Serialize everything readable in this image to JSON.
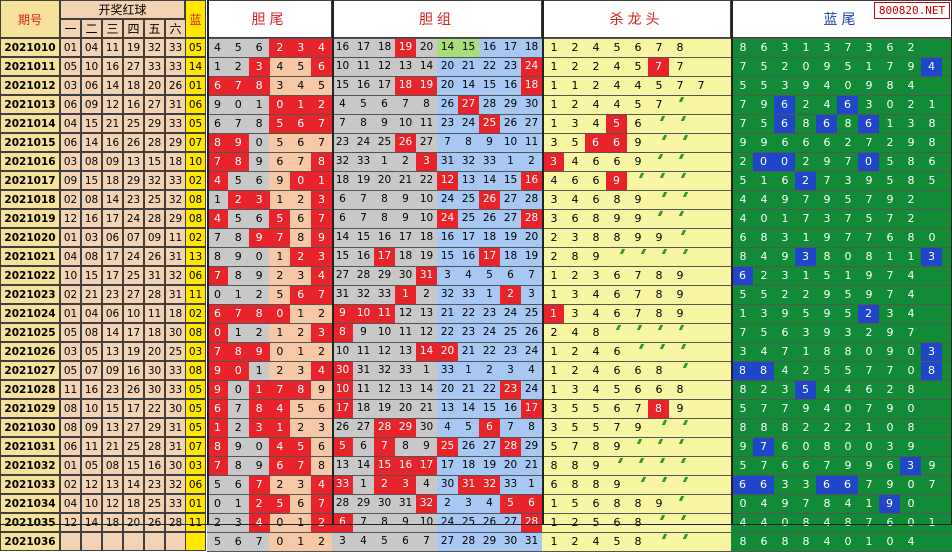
{
  "headers": {
    "period": "期号",
    "red_group": "开奖红球",
    "red_cols": [
      "一",
      "二",
      "三",
      "四",
      "五",
      "六"
    ],
    "blue": "蓝",
    "sec_dan": "胆尾",
    "sec_zu": "胆组",
    "sec_kill": "杀龙头",
    "sec_blue": "蓝尾"
  },
  "watermark": "800820.NET",
  "colors": {
    "period_bg": "#f6e29a",
    "ball_bg": "#f3d3b4",
    "blue_bg": "#ffe700",
    "red": "#e8242a",
    "gray": "#c8c8c8",
    "peach": "#f6c8a6",
    "lightblue": "#a6c8f2",
    "lightgreen": "#a7de7c",
    "yellow": "#f8f6a2",
    "green": "#118b36",
    "blue": "#1f45c8",
    "header_red": "#d81e1e",
    "header_blue": "#1b3fb5",
    "grid": "#3f3f3f"
  },
  "rows": [
    {
      "period": "2021010",
      "reds": [
        "01",
        "04",
        "11",
        "19",
        "32",
        "33"
      ],
      "blue": "05",
      "dan": [
        "4",
        "5",
        "6",
        "2",
        "3",
        "4"
      ],
      "zu": [
        "16",
        "17",
        "18",
        "19",
        "20",
        "14",
        "15",
        "16",
        "17",
        "18"
      ],
      "kill": [
        "1",
        "2",
        "4",
        "5",
        "6",
        "7",
        "8"
      ],
      "bluetail": [
        "8",
        "6",
        "3",
        "1",
        "3",
        "7",
        "3",
        "6",
        "2"
      ]
    },
    {
      "period": "2021011",
      "reds": [
        "05",
        "10",
        "16",
        "27",
        "33",
        "33"
      ],
      "blue": "14",
      "dan": [
        "1",
        "2",
        "3",
        "4",
        "5",
        "6"
      ],
      "zu": [
        "10",
        "11",
        "12",
        "13",
        "14",
        "20",
        "21",
        "22",
        "23",
        "24"
      ],
      "kill": [
        "1",
        "2",
        "2",
        "4",
        "5",
        "7",
        "7"
      ],
      "bluetail": [
        "7",
        "5",
        "2",
        "0",
        "9",
        "5",
        "1",
        "7",
        "9",
        "4"
      ]
    },
    {
      "period": "2021012",
      "reds": [
        "03",
        "06",
        "14",
        "18",
        "20",
        "26"
      ],
      "blue": "01",
      "dan": [
        "6",
        "7",
        "8",
        "3",
        "4",
        "5"
      ],
      "zu": [
        "15",
        "16",
        "17",
        "18",
        "19",
        "20",
        "14",
        "15",
        "16",
        "18"
      ],
      "kill": [
        "1",
        "1",
        "2",
        "4",
        "4",
        "5",
        "7",
        "7"
      ],
      "bluetail": [
        "5",
        "5",
        "3",
        "9",
        "4",
        "0",
        "9",
        "8",
        "4"
      ]
    },
    {
      "period": "2021013",
      "reds": [
        "06",
        "09",
        "12",
        "16",
        "27",
        "31"
      ],
      "blue": "06",
      "dan": [
        "9",
        "0",
        "1",
        "0",
        "1",
        "2"
      ],
      "zu": [
        "4",
        "5",
        "6",
        "7",
        "8",
        "26",
        "27",
        "28",
        "29",
        "30"
      ],
      "kill": [
        "1",
        "2",
        "4",
        "4",
        "5",
        "7"
      ],
      "bluetail": [
        "7",
        "9",
        "6",
        "2",
        "4",
        "6",
        "3",
        "0",
        "2",
        "1"
      ]
    },
    {
      "period": "2021014",
      "reds": [
        "04",
        "15",
        "21",
        "25",
        "29",
        "33"
      ],
      "blue": "05",
      "dan": [
        "6",
        "7",
        "8",
        "5",
        "6",
        "7"
      ],
      "zu": [
        "7",
        "8",
        "9",
        "10",
        "11",
        "23",
        "24",
        "25",
        "26",
        "27"
      ],
      "kill": [
        "1",
        "3",
        "4",
        "5",
        "6"
      ],
      "bluetail": [
        "7",
        "5",
        "6",
        "8",
        "6",
        "8",
        "6",
        "1",
        "3",
        "8"
      ]
    },
    {
      "period": "2021015",
      "reds": [
        "06",
        "14",
        "16",
        "26",
        "28",
        "29"
      ],
      "blue": "07",
      "dan": [
        "8",
        "9",
        "0",
        "5",
        "6",
        "7"
      ],
      "zu": [
        "23",
        "24",
        "25",
        "26",
        "27",
        "7",
        "8",
        "9",
        "10",
        "11"
      ],
      "kill": [
        "3",
        "5",
        "6",
        "6",
        "9"
      ],
      "bluetail": [
        "9",
        "9",
        "6",
        "6",
        "6",
        "2",
        "7",
        "2",
        "9",
        "8"
      ]
    },
    {
      "period": "2021016",
      "reds": [
        "03",
        "08",
        "09",
        "13",
        "15",
        "18"
      ],
      "blue": "10",
      "dan": [
        "7",
        "8",
        "9",
        "6",
        "7",
        "8"
      ],
      "zu": [
        "32",
        "33",
        "1",
        "2",
        "3",
        "31",
        "32",
        "33",
        "1",
        "2"
      ],
      "kill": [
        "3",
        "4",
        "6",
        "6",
        "9"
      ],
      "bluetail": [
        "2",
        "0",
        "0",
        "2",
        "9",
        "7",
        "0",
        "5",
        "8",
        "6"
      ]
    },
    {
      "period": "2021017",
      "reds": [
        "09",
        "15",
        "18",
        "29",
        "32",
        "33"
      ],
      "blue": "02",
      "dan": [
        "4",
        "5",
        "6",
        "9",
        "0",
        "1"
      ],
      "zu": [
        "18",
        "19",
        "20",
        "21",
        "22",
        "12",
        "13",
        "14",
        "15",
        "16"
      ],
      "kill": [
        "4",
        "6",
        "6",
        "9"
      ],
      "bluetail": [
        "5",
        "1",
        "6",
        "2",
        "7",
        "3",
        "9",
        "5",
        "8",
        "5"
      ]
    },
    {
      "period": "2021018",
      "reds": [
        "02",
        "08",
        "14",
        "23",
        "25",
        "32"
      ],
      "blue": "08",
      "dan": [
        "1",
        "2",
        "3",
        "1",
        "2",
        "3"
      ],
      "zu": [
        "6",
        "7",
        "8",
        "9",
        "10",
        "24",
        "25",
        "26",
        "27",
        "28"
      ],
      "kill": [
        "3",
        "4",
        "6",
        "8",
        "9"
      ],
      "bluetail": [
        "4",
        "4",
        "9",
        "7",
        "9",
        "5",
        "7",
        "9",
        "2"
      ]
    },
    {
      "period": "2021019",
      "reds": [
        "12",
        "16",
        "17",
        "24",
        "28",
        "29"
      ],
      "blue": "08",
      "dan": [
        "4",
        "5",
        "6",
        "5",
        "6",
        "7"
      ],
      "zu": [
        "6",
        "7",
        "8",
        "9",
        "10",
        "24",
        "25",
        "26",
        "27",
        "28"
      ],
      "kill": [
        "3",
        "6",
        "8",
        "9",
        "9"
      ],
      "bluetail": [
        "4",
        "0",
        "1",
        "7",
        "3",
        "7",
        "5",
        "7",
        "2"
      ]
    },
    {
      "period": "2021020",
      "reds": [
        "01",
        "03",
        "06",
        "07",
        "09",
        "11"
      ],
      "blue": "02",
      "dan": [
        "7",
        "8",
        "9",
        "7",
        "8",
        "9"
      ],
      "zu": [
        "14",
        "15",
        "16",
        "17",
        "18",
        "16",
        "17",
        "18",
        "19",
        "20"
      ],
      "kill": [
        "2",
        "3",
        "8",
        "8",
        "9",
        "9"
      ],
      "bluetail": [
        "6",
        "8",
        "3",
        "1",
        "9",
        "7",
        "7",
        "6",
        "8",
        "0"
      ]
    },
    {
      "period": "2021021",
      "reds": [
        "04",
        "08",
        "17",
        "24",
        "26",
        "31"
      ],
      "blue": "13",
      "dan": [
        "8",
        "9",
        "0",
        "1",
        "2",
        "3"
      ],
      "zu": [
        "15",
        "16",
        "17",
        "18",
        "19",
        "15",
        "16",
        "17",
        "18",
        "19"
      ],
      "kill": [
        "2",
        "8",
        "9"
      ],
      "bluetail": [
        "8",
        "4",
        "9",
        "3",
        "8",
        "0",
        "8",
        "1",
        "1",
        "3"
      ]
    },
    {
      "period": "2021022",
      "reds": [
        "10",
        "15",
        "17",
        "25",
        "31",
        "32"
      ],
      "blue": "06",
      "dan": [
        "7",
        "8",
        "9",
        "2",
        "3",
        "4"
      ],
      "zu": [
        "27",
        "28",
        "29",
        "30",
        "31",
        "3",
        "4",
        "5",
        "6",
        "7"
      ],
      "kill": [
        "1",
        "2",
        "3",
        "6",
        "7",
        "8",
        "9"
      ],
      "bluetail": [
        "6",
        "2",
        "3",
        "1",
        "5",
        "1",
        "9",
        "7",
        "4"
      ]
    },
    {
      "period": "2021023",
      "reds": [
        "02",
        "21",
        "23",
        "27",
        "28",
        "31"
      ],
      "blue": "11",
      "dan": [
        "0",
        "1",
        "2",
        "5",
        "6",
        "7"
      ],
      "zu": [
        "31",
        "32",
        "33",
        "1",
        "2",
        "32",
        "33",
        "1",
        "2",
        "3"
      ],
      "kill": [
        "1",
        "3",
        "4",
        "6",
        "7",
        "8",
        "9"
      ],
      "bluetail": [
        "5",
        "5",
        "2",
        "2",
        "9",
        "5",
        "9",
        "7",
        "4"
      ]
    },
    {
      "period": "2021024",
      "reds": [
        "01",
        "04",
        "06",
        "10",
        "11",
        "18"
      ],
      "blue": "02",
      "dan": [
        "6",
        "7",
        "8",
        "0",
        "1",
        "2"
      ],
      "zu": [
        "9",
        "10",
        "11",
        "12",
        "13",
        "21",
        "22",
        "23",
        "24",
        "25"
      ],
      "kill": [
        "1",
        "3",
        "4",
        "6",
        "7",
        "8",
        "9"
      ],
      "bluetail": [
        "1",
        "3",
        "9",
        "5",
        "9",
        "5",
        "2",
        "3",
        "4"
      ]
    },
    {
      "period": "2021025",
      "reds": [
        "05",
        "08",
        "14",
        "17",
        "18",
        "30"
      ],
      "blue": "08",
      "dan": [
        "0",
        "1",
        "2",
        "1",
        "2",
        "3"
      ],
      "zu": [
        "8",
        "9",
        "10",
        "11",
        "12",
        "22",
        "23",
        "24",
        "25",
        "26"
      ],
      "kill": [
        "2",
        "4",
        "8"
      ],
      "bluetail": [
        "7",
        "5",
        "6",
        "3",
        "9",
        "3",
        "2",
        "9",
        "7"
      ]
    },
    {
      "period": "2021026",
      "reds": [
        "03",
        "05",
        "13",
        "19",
        "20",
        "25"
      ],
      "blue": "03",
      "dan": [
        "7",
        "8",
        "9",
        "0",
        "1",
        "2"
      ],
      "zu": [
        "10",
        "11",
        "12",
        "13",
        "14",
        "20",
        "21",
        "22",
        "23",
        "24"
      ],
      "kill": [
        "1",
        "2",
        "4",
        "6"
      ],
      "bluetail": [
        "3",
        "4",
        "7",
        "1",
        "8",
        "8",
        "0",
        "9",
        "0",
        "3"
      ]
    },
    {
      "period": "2021027",
      "reds": [
        "05",
        "07",
        "09",
        "16",
        "30",
        "33"
      ],
      "blue": "08",
      "dan": [
        "9",
        "0",
        "1",
        "2",
        "3",
        "4"
      ],
      "zu": [
        "30",
        "31",
        "32",
        "33",
        "1",
        "33",
        "1",
        "2",
        "3",
        "4"
      ],
      "kill": [
        "1",
        "2",
        "4",
        "6",
        "6",
        "8"
      ],
      "bluetail": [
        "8",
        "8",
        "4",
        "2",
        "5",
        "5",
        "7",
        "7",
        "0",
        "8"
      ]
    },
    {
      "period": "2021028",
      "reds": [
        "11",
        "16",
        "23",
        "26",
        "30",
        "33"
      ],
      "blue": "05",
      "dan": [
        "9",
        "0",
        "1",
        "7",
        "8",
        "9"
      ],
      "zu": [
        "10",
        "11",
        "12",
        "13",
        "14",
        "20",
        "21",
        "22",
        "23",
        "24"
      ],
      "kill": [
        "1",
        "3",
        "4",
        "5",
        "6",
        "6",
        "8"
      ],
      "bluetail": [
        "8",
        "2",
        "3",
        "5",
        "4",
        "4",
        "6",
        "2",
        "8"
      ]
    },
    {
      "period": "2021029",
      "reds": [
        "08",
        "10",
        "15",
        "17",
        "22",
        "30"
      ],
      "blue": "05",
      "dan": [
        "6",
        "7",
        "8",
        "4",
        "5",
        "6"
      ],
      "zu": [
        "17",
        "18",
        "19",
        "20",
        "21",
        "13",
        "14",
        "15",
        "16",
        "17"
      ],
      "kill": [
        "3",
        "5",
        "5",
        "6",
        "7",
        "8",
        "9"
      ],
      "bluetail": [
        "5",
        "7",
        "7",
        "9",
        "4",
        "0",
        "7",
        "9",
        "0"
      ]
    },
    {
      "period": "2021030",
      "reds": [
        "08",
        "09",
        "13",
        "27",
        "29",
        "31"
      ],
      "blue": "05",
      "dan": [
        "1",
        "2",
        "3",
        "1",
        "2",
        "3"
      ],
      "zu": [
        "26",
        "27",
        "28",
        "29",
        "30",
        "4",
        "5",
        "6",
        "7",
        "8"
      ],
      "kill": [
        "3",
        "5",
        "5",
        "7",
        "9"
      ],
      "bluetail": [
        "8",
        "8",
        "8",
        "2",
        "2",
        "2",
        "1",
        "0",
        "8"
      ]
    },
    {
      "period": "2021031",
      "reds": [
        "06",
        "11",
        "21",
        "25",
        "28",
        "31"
      ],
      "blue": "07",
      "dan": [
        "8",
        "9",
        "0",
        "4",
        "5",
        "6"
      ],
      "zu": [
        "5",
        "6",
        "7",
        "8",
        "9",
        "25",
        "26",
        "27",
        "28",
        "29"
      ],
      "kill": [
        "5",
        "7",
        "8",
        "9"
      ],
      "bluetail": [
        "9",
        "7",
        "6",
        "0",
        "8",
        "0",
        "0",
        "3",
        "9"
      ]
    },
    {
      "period": "2021032",
      "reds": [
        "01",
        "05",
        "08",
        "15",
        "16",
        "30"
      ],
      "blue": "03",
      "dan": [
        "7",
        "8",
        "9",
        "6",
        "7",
        "8"
      ],
      "zu": [
        "13",
        "14",
        "15",
        "16",
        "17",
        "17",
        "18",
        "19",
        "20",
        "21"
      ],
      "kill": [
        "8",
        "8",
        "9"
      ],
      "bluetail": [
        "5",
        "7",
        "6",
        "6",
        "7",
        "9",
        "9",
        "6",
        "3",
        "9"
      ]
    },
    {
      "period": "2021033",
      "reds": [
        "02",
        "12",
        "13",
        "14",
        "23",
        "32"
      ],
      "blue": "06",
      "dan": [
        "5",
        "6",
        "7",
        "2",
        "3",
        "4"
      ],
      "zu": [
        "33",
        "1",
        "2",
        "3",
        "4",
        "30",
        "31",
        "32",
        "33",
        "1"
      ],
      "kill": [
        "6",
        "8",
        "8",
        "9"
      ],
      "bluetail": [
        "6",
        "6",
        "3",
        "3",
        "6",
        "6",
        "7",
        "9",
        "0",
        "7"
      ]
    },
    {
      "period": "2021034",
      "reds": [
        "04",
        "10",
        "12",
        "18",
        "25",
        "33"
      ],
      "blue": "01",
      "dan": [
        "0",
        "1",
        "2",
        "5",
        "6",
        "7"
      ],
      "zu": [
        "28",
        "29",
        "30",
        "31",
        "32",
        "2",
        "3",
        "4",
        "5",
        "6"
      ],
      "kill": [
        "1",
        "5",
        "6",
        "8",
        "8",
        "9"
      ],
      "bluetail": [
        "0",
        "4",
        "9",
        "7",
        "8",
        "4",
        "1",
        "9",
        "0"
      ]
    },
    {
      "period": "2021035",
      "reds": [
        "12",
        "14",
        "18",
        "20",
        "26",
        "28"
      ],
      "blue": "11",
      "dan": [
        "2",
        "3",
        "4",
        "0",
        "1",
        "2"
      ],
      "zu": [
        "6",
        "7",
        "8",
        "9",
        "10",
        "24",
        "25",
        "26",
        "27",
        "28"
      ],
      "kill": [
        "1",
        "2",
        "5",
        "6",
        "8"
      ],
      "bluetail": [
        "4",
        "4",
        "0",
        "8",
        "4",
        "8",
        "7",
        "6",
        "0",
        "1"
      ]
    },
    {
      "period": "2021036",
      "reds": [
        "",
        "",
        "",
        "",
        "",
        ""
      ],
      "blue": "",
      "dan": [
        "5",
        "6",
        "7",
        "0",
        "1",
        "2"
      ],
      "zu": [
        "3",
        "4",
        "5",
        "6",
        "7",
        "27",
        "28",
        "29",
        "30",
        "31"
      ],
      "kill": [
        "1",
        "2",
        "4",
        "5",
        "8"
      ],
      "bluetail": [
        "8",
        "6",
        "8",
        "8",
        "4",
        "0",
        "1",
        "0",
        "4"
      ]
    }
  ]
}
